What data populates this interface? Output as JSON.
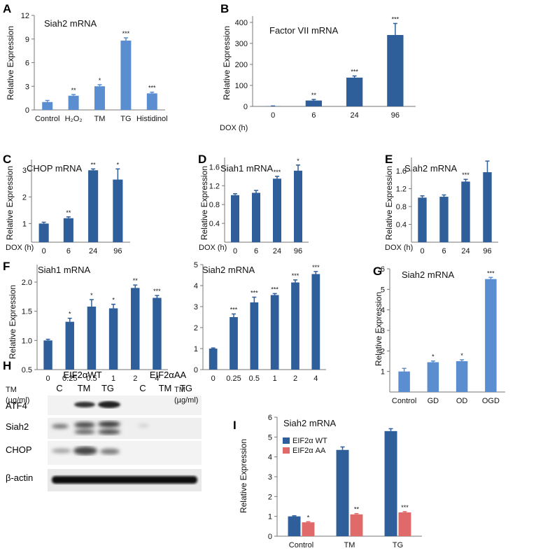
{
  "colors": {
    "bar_light": "#5b8ed1",
    "bar_dark": "#2f5f9a",
    "bar_red": "#e06a6a"
  },
  "chart_data": [
    {
      "id": "A",
      "panel_label": "A",
      "type": "bar",
      "title": "Siah2 mRNA",
      "ylabel": "Relative Expression",
      "xprefix": "",
      "categories": [
        "Control",
        "H2O2",
        "TM",
        "TG",
        "Histidinol"
      ],
      "values": [
        1.0,
        1.8,
        3.0,
        8.8,
        2.1
      ],
      "errors": [
        0.2,
        0.15,
        0.2,
        0.35,
        0.15
      ],
      "significance": [
        "",
        "**",
        "*",
        "***",
        "***"
      ],
      "ylim": [
        0,
        12
      ],
      "yticks": [
        0,
        3,
        6,
        9,
        12
      ],
      "color": "bar_light"
    },
    {
      "id": "B",
      "panel_label": "B",
      "type": "bar",
      "title": "Factor VII mRNA",
      "ylabel": "Relative Expression",
      "xprefix": "DOX (h)",
      "categories": [
        "0",
        "6",
        "24",
        "96"
      ],
      "values": [
        1,
        28,
        137,
        340
      ],
      "errors": [
        1,
        5,
        8,
        55
      ],
      "significance": [
        "",
        "**",
        "***",
        "***"
      ],
      "ylim": [
        0,
        430
      ],
      "yticks": [
        0,
        100,
        200,
        300,
        400
      ],
      "color": "bar_dark"
    },
    {
      "id": "C",
      "panel_label": "C",
      "type": "bar",
      "title": "CHOP mRNA",
      "ylabel": "Relative Expression",
      "xprefix": "DOX (h)",
      "categories": [
        "0",
        "6",
        "24",
        "96"
      ],
      "values": [
        1.0,
        1.2,
        3.0,
        2.65
      ],
      "errors": [
        0.05,
        0.05,
        0.05,
        0.4
      ],
      "significance": [
        "",
        "**",
        "**",
        "*"
      ],
      "ylim": [
        0.3,
        3.4
      ],
      "yticks": [
        1,
        2,
        3
      ],
      "color": "bar_dark"
    },
    {
      "id": "D",
      "panel_label": "D",
      "type": "bar",
      "title": "Siah1 mRNA",
      "ylabel": "Relative Expression",
      "xprefix": "DOX (h)",
      "categories": [
        "0",
        "6",
        "24",
        "96"
      ],
      "values": [
        1.0,
        1.05,
        1.35,
        1.52
      ],
      "errors": [
        0.03,
        0.05,
        0.05,
        0.12
      ],
      "significance": [
        "",
        "",
        "***",
        "*"
      ],
      "ylim": [
        0,
        1.8
      ],
      "yticks": [
        0.4,
        0.8,
        1.2,
        1.6
      ],
      "color": "bar_dark"
    },
    {
      "id": "E",
      "panel_label": "E",
      "type": "bar",
      "title": "Siah2 mRNA",
      "ylabel": "Relative Expression",
      "xprefix": "DOX (h)",
      "categories": [
        "0",
        "6",
        "24",
        "96"
      ],
      "values": [
        1.0,
        1.02,
        1.36,
        1.57
      ],
      "errors": [
        0.04,
        0.04,
        0.05,
        0.25
      ],
      "significance": [
        "",
        "",
        "***",
        ""
      ],
      "ylim": [
        0,
        1.9
      ],
      "yticks": [
        0.4,
        0.8,
        1.2,
        1.6
      ],
      "color": "bar_dark"
    },
    {
      "id": "F1",
      "panel_label": "F",
      "type": "bar",
      "title": "Siah1 mRNA",
      "ylabel": "Relative Expression",
      "xprefix": "TM",
      "xprefix2": "(µg/ml)",
      "categories": [
        "0",
        "0.25",
        "0.5",
        "1",
        "2",
        "4"
      ],
      "values": [
        1.0,
        1.32,
        1.58,
        1.55,
        1.9,
        1.73
      ],
      "errors": [
        0.02,
        0.06,
        0.12,
        0.07,
        0.05,
        0.04
      ],
      "significance": [
        "",
        "*",
        "*",
        "*",
        "**",
        "***"
      ],
      "ylim": [
        0.5,
        2.3
      ],
      "yticks": [
        0.5,
        1.0,
        1.5,
        2.0
      ],
      "yfmt": 1,
      "color": "bar_dark"
    },
    {
      "id": "F2",
      "panel_label": "",
      "type": "bar",
      "title": "Siah2 mRNA",
      "ylabel": "",
      "xprefix": "TM",
      "xprefix2": "(µg/ml)",
      "categories": [
        "0",
        "0.25",
        "0.5",
        "1",
        "2",
        "4"
      ],
      "values": [
        1.0,
        2.5,
        3.2,
        3.55,
        4.15,
        4.55
      ],
      "errors": [
        0.03,
        0.15,
        0.25,
        0.07,
        0.12,
        0.12
      ],
      "significance": [
        "",
        "***",
        "***",
        "***",
        "***",
        "***"
      ],
      "ylim": [
        0,
        5
      ],
      "yticks": [
        0,
        1,
        2,
        3,
        4,
        5
      ],
      "color": "bar_dark"
    },
    {
      "id": "G",
      "panel_label": "G",
      "type": "bar",
      "title": "Siah2 mRNA",
      "ylabel": "Relative Expression",
      "xprefix": "",
      "categories": [
        "Control",
        "GD",
        "OD",
        "OGD"
      ],
      "values": [
        1.0,
        1.45,
        1.5,
        5.5
      ],
      "errors": [
        0.15,
        0.06,
        0.07,
        0.08
      ],
      "significance": [
        "",
        "*",
        "*",
        "***"
      ],
      "ylim": [
        0,
        6
      ],
      "yticks": [
        1,
        2,
        3,
        4,
        5,
        6
      ],
      "color": "bar_light"
    },
    {
      "id": "I",
      "panel_label": "I",
      "type": "bar",
      "title": "Siah2 mRNA",
      "ylabel": "Relative Expression",
      "xprefix": "",
      "categories": [
        "Control",
        "TM",
        "TG"
      ],
      "series": [
        {
          "name": "EIF2α WT",
          "values": [
            1.0,
            4.35,
            5.3
          ],
          "errors": [
            0.03,
            0.15,
            0.12
          ],
          "significance": [
            "",
            "",
            ""
          ],
          "color": "bar_dark"
        },
        {
          "name": "EIF2α AA",
          "values": [
            0.7,
            1.1,
            1.2
          ],
          "errors": [
            0.03,
            0.04,
            0.04
          ],
          "significance": [
            "*",
            "**",
            "***"
          ],
          "color": "bar_red"
        }
      ],
      "ylim": [
        0,
        6
      ],
      "yticks": [
        0,
        1,
        2,
        3,
        4,
        5,
        6
      ],
      "legend": "top-left"
    }
  ],
  "blot": {
    "panel_label": "H",
    "groups": [
      "EIF2αWT",
      "EIF2αAA"
    ],
    "lanes": [
      "C",
      "TM",
      "TG",
      "C",
      "TM",
      "TG"
    ],
    "rows": [
      "ATF4",
      "Siah2",
      "CHOP",
      "β-actin"
    ]
  }
}
